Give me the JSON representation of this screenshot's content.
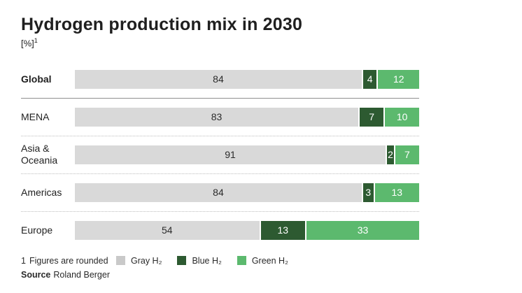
{
  "title": "Hydrogen production mix in 2030",
  "subtitle_unit": "[%]",
  "subtitle_footnote_marker": "1",
  "colors": {
    "gray": "#d9d9d9",
    "blue": "#2d5a31",
    "green": "#5cb96e",
    "bar_text_dark": "#2b2b2b",
    "bar_text_light": "#ffffff",
    "legend_gray_swatch": "#c9c9c9"
  },
  "chart_data": {
    "type": "bar",
    "orientation": "horizontal-stacked",
    "title": "Hydrogen production mix in 2030",
    "unit": "%",
    "categories": [
      "Global",
      "MENA",
      "Asia & Oceania",
      "Americas",
      "Europe"
    ],
    "series": [
      {
        "name": "Gray H₂",
        "color_key": "gray",
        "values": [
          84,
          83,
          91,
          84,
          54
        ]
      },
      {
        "name": "Blue H₂",
        "color_key": "blue",
        "values": [
          4,
          7,
          2,
          3,
          13
        ]
      },
      {
        "name": "Green H₂",
        "color_key": "green",
        "values": [
          12,
          10,
          7,
          13,
          33
        ]
      }
    ],
    "x_range": [
      0,
      100
    ],
    "value_labels": true,
    "legend_position": "bottom",
    "grid": false
  },
  "row_emphasis": [
    "bold",
    "normal",
    "normal",
    "normal",
    "normal"
  ],
  "footnote": {
    "marker": "1",
    "text": "Figures are rounded"
  },
  "source": {
    "label": "Source",
    "value": "Roland Berger"
  }
}
